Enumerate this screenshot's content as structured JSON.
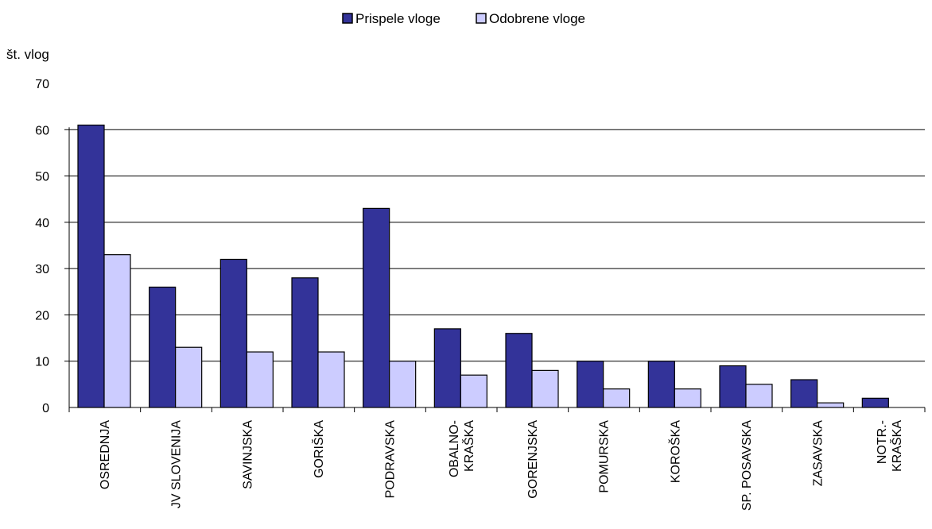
{
  "chart_data": {
    "type": "bar",
    "ylabel": "št. vlog",
    "ylim": [
      0,
      70
    ],
    "yticks": [
      "0",
      "10",
      "20",
      "30",
      "40",
      "50",
      "60",
      "70"
    ],
    "categories": [
      [
        "OSREDNJA"
      ],
      [
        "JV SLOVENIJA"
      ],
      [
        "SAVINJSKA"
      ],
      [
        "GORIŠKA"
      ],
      [
        "PODRAVSKA"
      ],
      [
        "OBALNO-",
        "KRAŠKA"
      ],
      [
        "GORENJSKA"
      ],
      [
        "POMURSKA"
      ],
      [
        "KOROŠKA"
      ],
      [
        "SP. POSAVSKA"
      ],
      [
        "ZASAVSKA"
      ],
      [
        "NOTR.-",
        "KRAŠKA"
      ]
    ],
    "series": [
      {
        "name": "Prispele vloge",
        "color": "#333399",
        "values": [
          61,
          26,
          32,
          28,
          43,
          17,
          16,
          10,
          10,
          9,
          6,
          2
        ]
      },
      {
        "name": "Odobrene vloge",
        "color": "#ccccff",
        "values": [
          33,
          13,
          12,
          12,
          10,
          7,
          8,
          4,
          4,
          5,
          1,
          0
        ]
      }
    ],
    "grid": true,
    "legend_position": "top-center"
  }
}
